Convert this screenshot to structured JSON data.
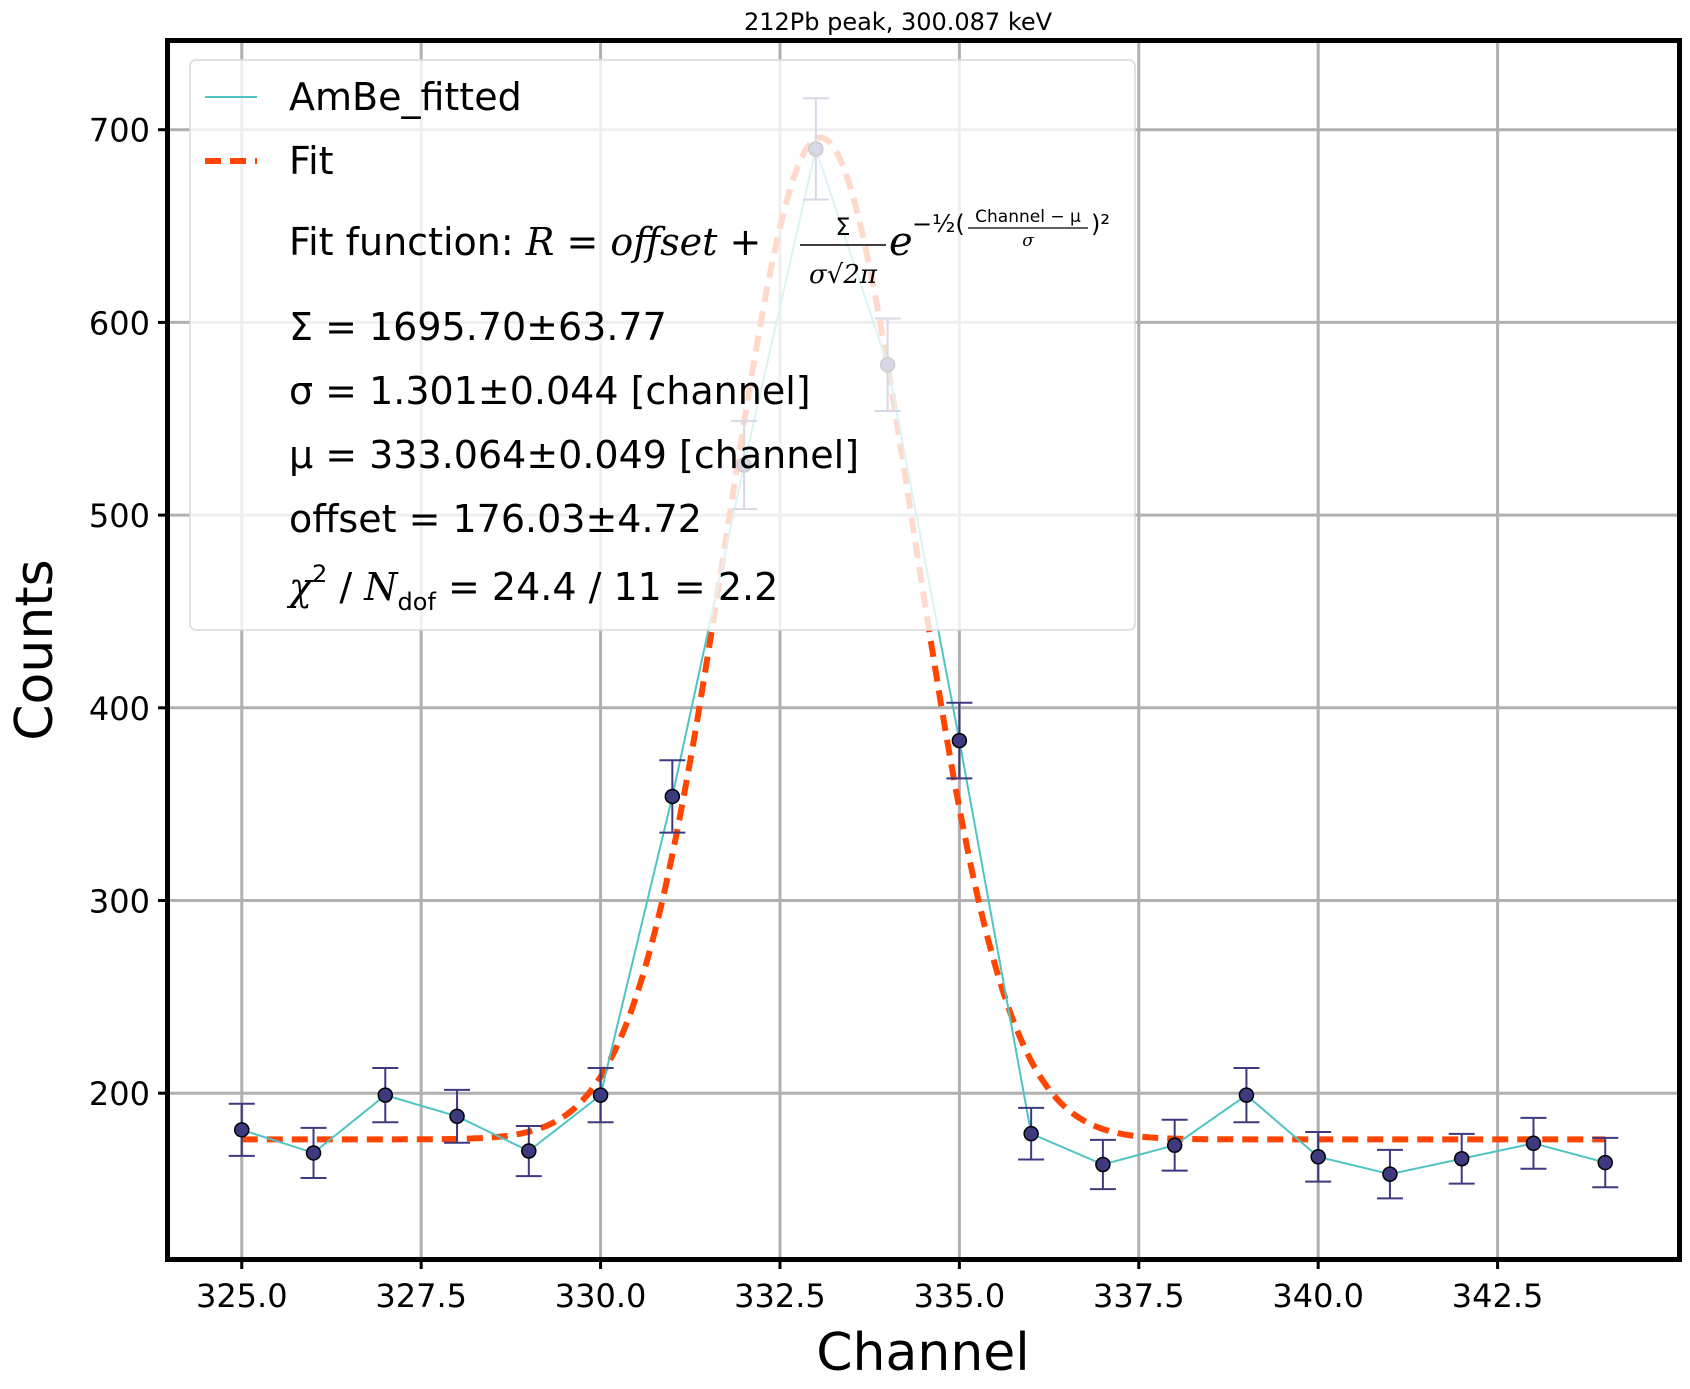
{
  "chart_data": {
    "type": "scatter",
    "title": "212Pb peak, 300.087 keV",
    "xlabel": "Channel",
    "ylabel": "Counts",
    "xlim": [
      324.0,
      345.0
    ],
    "ylim": [
      115,
      745
    ],
    "x_ticks": [
      325.0,
      327.5,
      330.0,
      332.5,
      335.0,
      337.5,
      340.0,
      342.5
    ],
    "x_tick_labels": [
      "325.0",
      "327.5",
      "330.0",
      "332.5",
      "335.0",
      "337.5",
      "340.0",
      "342.5"
    ],
    "y_ticks": [
      200,
      300,
      400,
      500,
      600,
      700
    ],
    "y_tick_labels": [
      "200",
      "300",
      "400",
      "500",
      "600",
      "700"
    ],
    "grid": true,
    "legend_position": "top-left",
    "series": [
      {
        "name": "AmBe_fitted",
        "kind": "line+errorbar",
        "color": "#4fc4c4",
        "marker_color": "#3d3a80",
        "x": [
          325,
          326,
          327,
          328,
          329,
          330,
          331,
          332,
          333,
          334,
          335,
          336,
          337,
          338,
          339,
          340,
          341,
          342,
          343,
          344
        ],
        "y": [
          181,
          169,
          199,
          188,
          170,
          199,
          354,
          526,
          690,
          578,
          383,
          179,
          163,
          173,
          199,
          167,
          158,
          166,
          174,
          164
        ],
        "yerr": [
          13.5,
          13.0,
          14.1,
          13.7,
          13.0,
          14.1,
          18.8,
          22.9,
          26.3,
          24.0,
          19.6,
          13.4,
          12.8,
          13.2,
          14.1,
          12.9,
          12.6,
          12.9,
          13.2,
          12.8
        ]
      },
      {
        "name": "Fit",
        "kind": "gaussian+offset",
        "color": "#ff4500",
        "style": "dashed",
        "x_range": [
          325,
          344
        ],
        "params": {
          "Sigma": 1695.7,
          "sigma": 1.301,
          "mu": 333.064,
          "offset": 176.03
        }
      }
    ]
  },
  "legend": {
    "entries": [
      {
        "label": "AmBe_fitted"
      },
      {
        "label": "Fit"
      }
    ],
    "fit_function_prefix": "Fit function: ",
    "fit_function_r": "R",
    "fit_function_eq": " = ",
    "fit_function_offset": "offset",
    "fit_function_plus": " + ",
    "frac_num": "Σ",
    "frac_den": "σ√2π",
    "exp_base": "e",
    "exp_power": "−½(",
    "exp_frac_num": "Channel − μ",
    "exp_frac_den": "σ",
    "exp_close": ")²",
    "param_lines": [
      "Σ = 1695.70±63.77",
      "σ = 1.301±0.044 [channel]",
      "μ = 333.064±0.049 [channel]",
      "offset = 176.03±4.72"
    ],
    "chi_symbol": "χ",
    "chi_sup": "2",
    "chi_mid": " / ",
    "ndof_n": "N",
    "ndof_sub": "dof",
    "chi_value": " = 24.4 / 11 = 2.2"
  }
}
